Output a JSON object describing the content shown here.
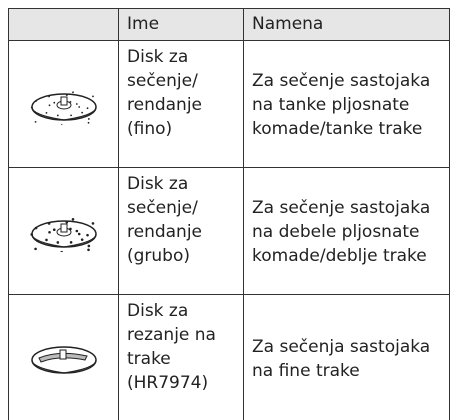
{
  "table": {
    "header": [
      "Ime",
      "Namena"
    ],
    "rows": [
      {
        "name": [
          "Disk za",
          "sečenje/",
          "rendanje",
          "(fino)"
        ],
        "description": [
          "Za sečenje sastojaka",
          "na tanke pljosnate",
          "komade/tanke trake"
        ]
      },
      {
        "name": [
          "Disk za",
          "sečenje/",
          "rendanje",
          "(grubo)"
        ],
        "description": [
          "Za sečenje sastojaka",
          "na debele pljosnate",
          "komade/deblje trake"
        ]
      },
      {
        "name": [
          "Disk za",
          "rezanje na",
          "trake",
          "(HR7974)"
        ],
        "description": [
          "Za sečenja sastojaka",
          "na fine trake"
        ]
      }
    ]
  }
}
